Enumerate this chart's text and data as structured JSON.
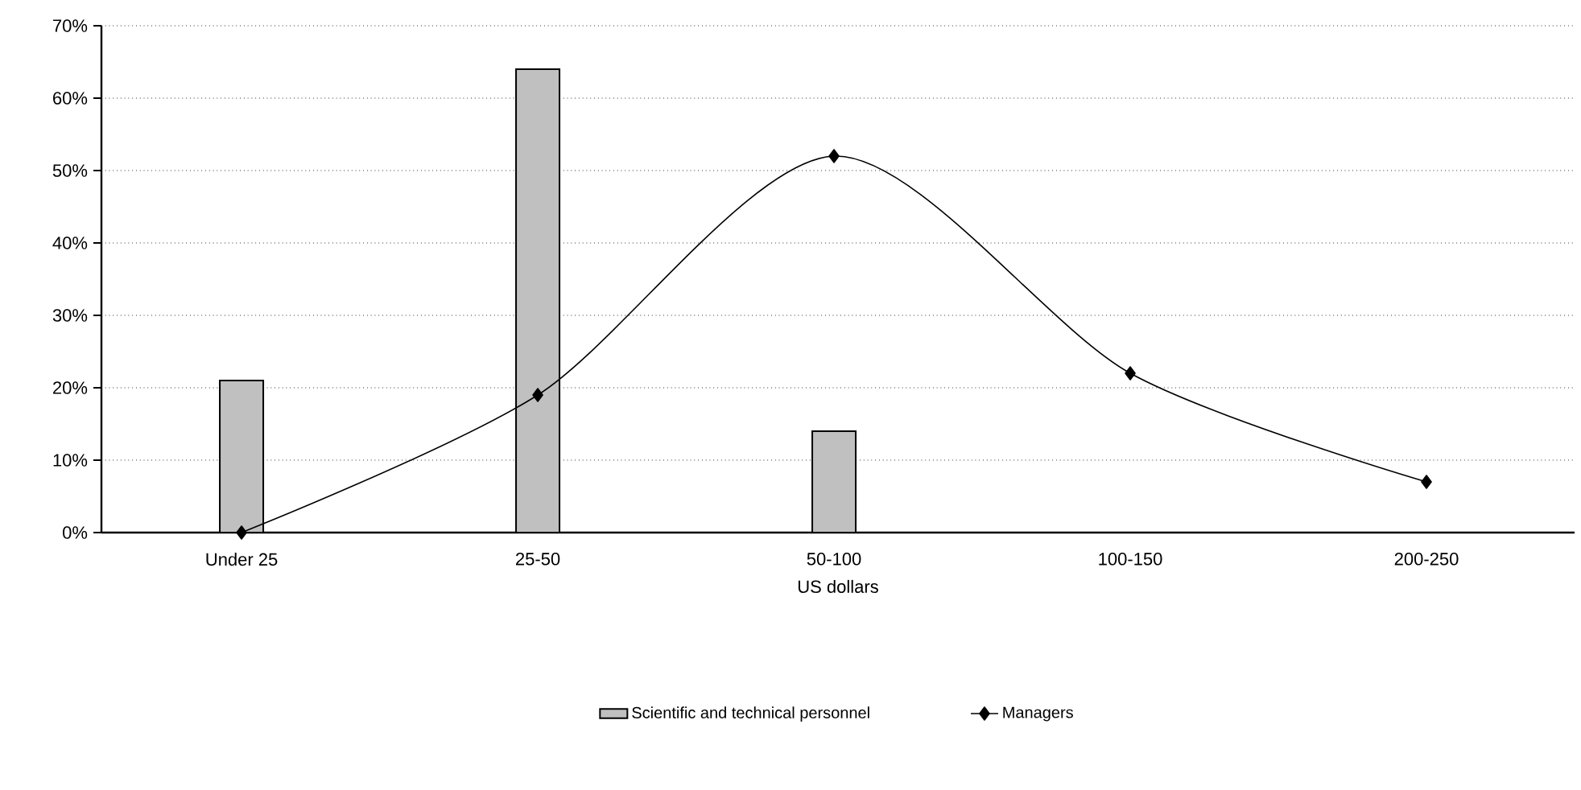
{
  "chart_data": {
    "type": "bar",
    "xlabel": "US dollars",
    "categories": [
      "Under 25",
      "25-50",
      "50-100",
      "100-150",
      "200-250"
    ],
    "series": [
      {
        "name": "Scientific and technical personnel",
        "color": "#c0c0c0",
        "values": [
          21,
          64,
          14,
          0,
          0
        ]
      },
      {
        "name": "Managers",
        "type": "line",
        "color": "#000000",
        "marker": "diamond",
        "line_style": "solid",
        "values": [
          0,
          19,
          52,
          22,
          7
        ]
      }
    ],
    "ylim": [
      0,
      70
    ],
    "yticks": [
      {
        "value": 0,
        "label": "0%"
      },
      {
        "value": 10,
        "label": "10%"
      },
      {
        "value": 20,
        "label": "20%"
      },
      {
        "value": 30,
        "label": "30%"
      },
      {
        "value": 40,
        "label": "40%"
      },
      {
        "value": 50,
        "label": "50%"
      },
      {
        "value": 60,
        "label": "60%"
      },
      {
        "value": 70,
        "label": "70%"
      }
    ],
    "grid": "y",
    "legend": "bottom"
  }
}
